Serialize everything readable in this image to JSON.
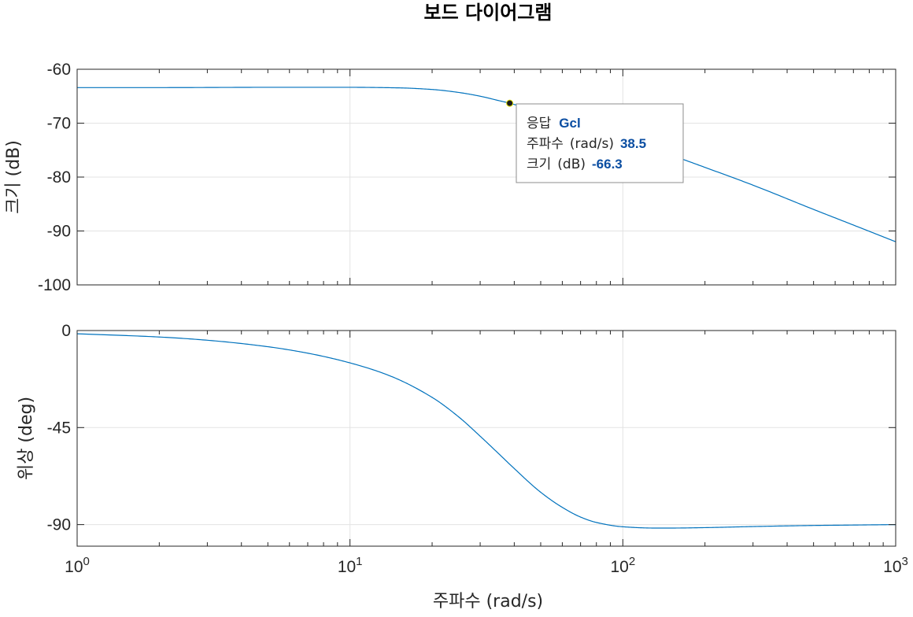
{
  "title": "보드 다이어그램",
  "chart_data": [
    {
      "type": "line",
      "panel": "magnitude",
      "ylabel": "크기 (dB)",
      "xscale": "log",
      "xlim": [
        1,
        1000
      ],
      "ylim": [
        -100,
        -60
      ],
      "yticks": [
        -60,
        -70,
        -80,
        -90,
        -100
      ],
      "ytick_labels": [
        "-60",
        "-70",
        "-80",
        "-90",
        "-100"
      ],
      "grid": true,
      "series": [
        {
          "color": "#0072bd",
          "x": [
            1,
            2,
            5,
            10,
            15,
            20,
            25,
            30,
            35,
            38.5,
            45,
            55,
            70,
            100,
            150,
            200,
            300,
            500,
            700,
            1000
          ],
          "y": [
            -63.4,
            -63.4,
            -63.35,
            -63.35,
            -63.45,
            -63.75,
            -64.3,
            -65.0,
            -65.8,
            -66.3,
            -67.3,
            -68.5,
            -70.1,
            -72.7,
            -75.9,
            -78.2,
            -81.5,
            -86.0,
            -88.9,
            -92.0
          ]
        }
      ],
      "datatip": {
        "x": 38.5,
        "y": -66.3,
        "response_label": "응답",
        "response_value": "Gcl",
        "freq_label": "주파수",
        "freq_unit": "(rad/s)",
        "freq_value": "38.5",
        "mag_label": "크기",
        "mag_unit": "(dB)",
        "mag_value": "-66.3"
      }
    },
    {
      "type": "line",
      "panel": "phase",
      "ylabel": "위상 (deg)",
      "xlabel": "주파수 (rad/s)",
      "xscale": "log",
      "xlim": [
        1,
        1000
      ],
      "ylim": [
        -100,
        0
      ],
      "yticks": [
        0,
        -45,
        -90
      ],
      "ytick_labels": [
        "0",
        "-45",
        "-90"
      ],
      "xticks": [
        {
          "base": "10",
          "exp": "0"
        },
        {
          "base": "10",
          "exp": "1"
        },
        {
          "base": "10",
          "exp": "2"
        },
        {
          "base": "10",
          "exp": "3"
        }
      ],
      "grid": true,
      "series": [
        {
          "color": "#0072bd",
          "x": [
            1,
            2,
            3,
            5,
            7,
            10,
            14,
            20,
            25,
            30,
            35,
            40,
            50,
            60,
            70,
            80,
            100,
            130,
            150,
            200,
            300,
            500,
            700,
            1000
          ],
          "y": [
            -1.5,
            -3,
            -4.5,
            -7.5,
            -10.5,
            -15,
            -21,
            -31,
            -40,
            -49,
            -57,
            -64,
            -75,
            -82,
            -86.5,
            -89,
            -91,
            -91.6,
            -91.6,
            -91.4,
            -90.9,
            -90.4,
            -90.2,
            -90.0
          ]
        }
      ]
    }
  ]
}
